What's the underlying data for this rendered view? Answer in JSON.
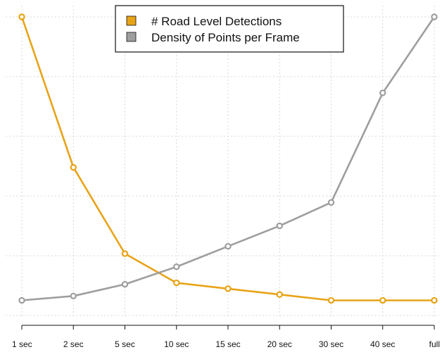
{
  "chart_data": {
    "type": "line",
    "categories": [
      "1 sec",
      "2 sec",
      "5 sec",
      "10 sec",
      "15 sec",
      "20 sec",
      "30 sec",
      "40 sec",
      "full"
    ],
    "ylim": [
      0,
      1
    ],
    "grid": true,
    "legend_position": "top-center",
    "series": [
      {
        "name": "# Road Level Detections",
        "color": "#E8A317",
        "values": [
          1.0,
          0.485,
          0.19,
          0.09,
          0.07,
          0.05,
          0.03,
          0.03,
          0.03
        ]
      },
      {
        "name": "Density of Points per Frame",
        "color": "#9E9E9E",
        "values": [
          0.03,
          0.045,
          0.085,
          0.145,
          0.215,
          0.285,
          0.365,
          0.74,
          1.0
        ]
      }
    ]
  }
}
